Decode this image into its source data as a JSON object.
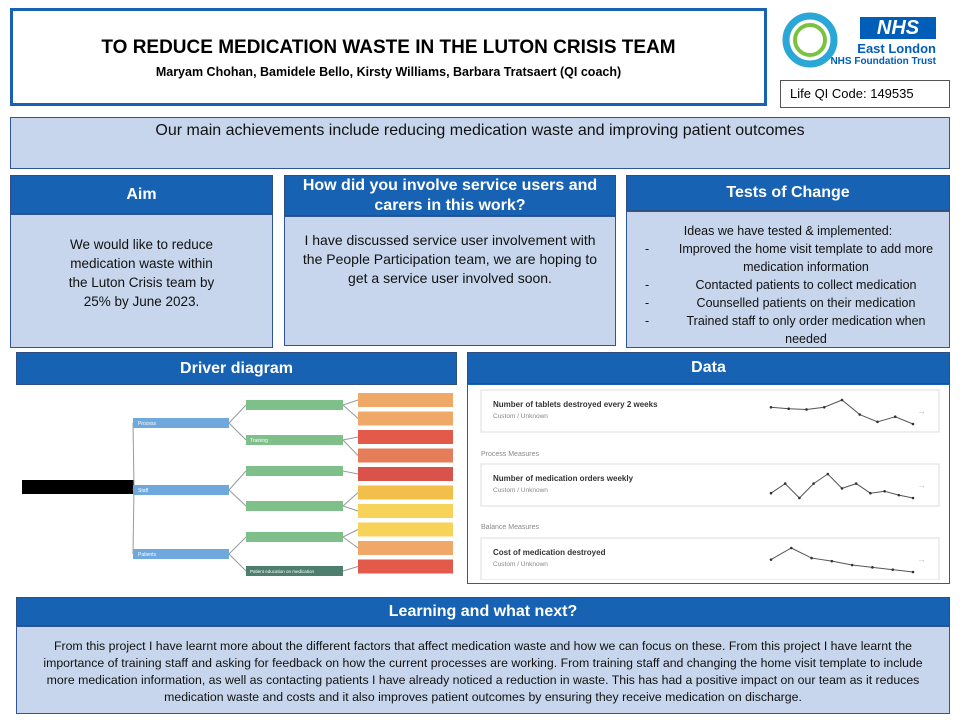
{
  "header": {
    "title": "TO REDUCE MEDICATION WASTE IN THE LUTON CRISIS TEAM",
    "authors": "Maryam Chohan, Bamidele Bello, Kirsty Williams, Barbara Tratsaert (QI coach)",
    "nhs": "NHS",
    "org_name": "East London",
    "org_trust": "NHS Foundation Trust",
    "qi_code": "Life QI Code: 149535"
  },
  "achievements": "Our main achievements include reducing medication waste and improving patient outcomes",
  "aim": {
    "heading": "Aim",
    "text": "We would like to reduce medication waste within the Luton Crisis team by 25% by June 2023."
  },
  "involvement": {
    "heading": "How did you involve service users and carers in this work?",
    "text": "I have discussed service user involvement with the People Participation team, we are hoping to get a service user involved soon."
  },
  "tests": {
    "heading": "Tests of Change",
    "intro": "Ideas we have tested & implemented:",
    "items": [
      "Improved the home visit template to add more medication information",
      "Contacted patients to collect medication",
      "Counselled patients on their medication",
      "Trained staff to only order medication when needed"
    ]
  },
  "driver_diagram": {
    "heading": "Driver diagram",
    "primary": [
      "Process",
      "Staff",
      "Patients"
    ],
    "secondary": [
      "Training",
      "Patient education on medication"
    ]
  },
  "data": {
    "heading": "Data",
    "sections": [
      "Process Measures",
      "Balance Measures"
    ],
    "measures": [
      {
        "title": "Number of tablets destroyed every 2 weeks",
        "subtitle": "Custom / Unknown",
        "values": [
          5.5,
          5.3,
          5.2,
          5.5,
          6.5,
          4.5,
          3.5,
          4.2,
          3.2
        ]
      },
      {
        "title": "Number of medication orders weekly",
        "subtitle": "Custom / Unknown",
        "values": [
          4,
          5,
          3.5,
          5,
          6,
          4.5,
          5,
          4,
          4.2,
          3.8,
          3.5
        ]
      },
      {
        "title": "Cost of medication destroyed",
        "subtitle": "Custom / Unknown",
        "values": [
          4,
          5.5,
          4.2,
          3.8,
          3.3,
          3,
          2.7,
          2.4
        ]
      }
    ]
  },
  "learning": {
    "heading": "Learning and what next?",
    "text": "From this project I have learnt more about the different factors that affect medication waste and how we can focus on these. From this project I have learnt the importance of training staff and asking for feedback on how the current processes are working. From training staff and changing the home visit template to include more medication information, as well as contacting patients I have already noticed a reduction in waste. This has had a positive impact on our team as it reduces medication waste and costs and it also improves patient outcomes by ensuring they receive medication on discharge."
  }
}
